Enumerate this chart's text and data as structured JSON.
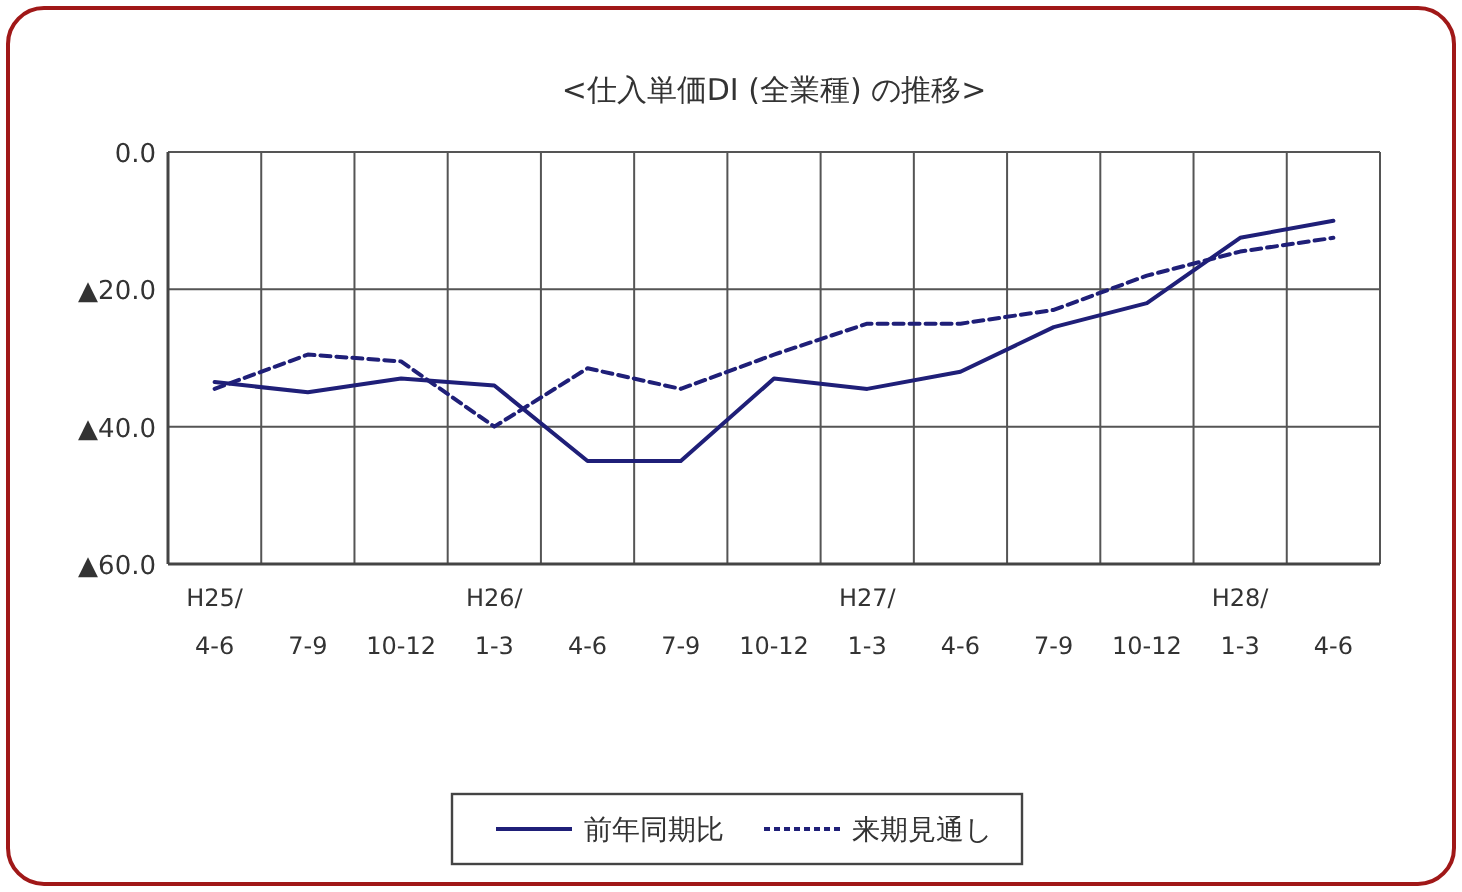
{
  "chart_data": {
    "type": "line",
    "title": "<仕入単価DI (全業種) の推移>",
    "categories": [
      "H25/\n4-6",
      "7-9",
      "10-12",
      "H26/\n1-3",
      "4-6",
      "7-9",
      "10-12",
      "H27/\n1-3",
      "4-6",
      "7-9",
      "10-12",
      "H28/\n1-3",
      "4-6"
    ],
    "series": [
      {
        "name": "前年同期比",
        "color": "#1f1f78",
        "line_style": "solid",
        "values": [
          -33.5,
          -35,
          -33,
          -34,
          -45,
          -45,
          -33,
          -34.5,
          -32,
          -25.5,
          -22,
          -12.5,
          -10
        ]
      },
      {
        "name": "来期見通し",
        "color": "#1f1f78",
        "line_style": "dashed",
        "values": [
          -34.5,
          -29.5,
          -30.5,
          -40,
          -31.5,
          -34.5,
          -29.5,
          -25,
          -25,
          -23,
          -18,
          -14.5,
          -12.5
        ]
      }
    ],
    "ylim": [
      -60,
      0
    ],
    "yticks": [
      {
        "value": -60,
        "label": "▲60.0"
      },
      {
        "value": -40,
        "label": "▲40.0"
      },
      {
        "value": -20,
        "label": "▲20.0"
      },
      {
        "value": 0,
        "label": "0.0"
      }
    ],
    "grid": true,
    "legend": "bottom",
    "marker": "none"
  }
}
